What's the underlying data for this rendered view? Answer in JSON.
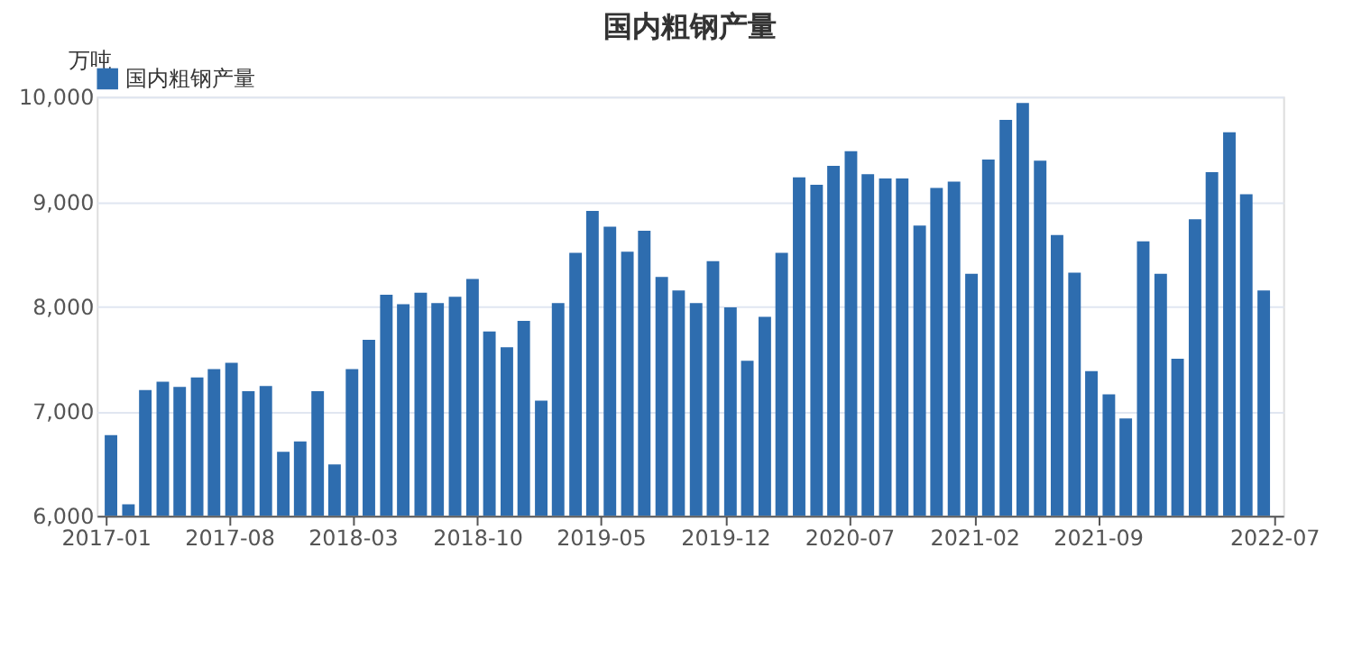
{
  "chart_data": {
    "type": "bar",
    "title": "国内粗钢产量",
    "ylabel": "万吨",
    "x": [
      "2017-01-10",
      "2017-02-09",
      "2017-03-10",
      "2017-04-09",
      "2017-05-08",
      "2017-06-07",
      "2017-07-06",
      "2017-08-05",
      "2017-09-03",
      "2017-10-03",
      "2017-11-02",
      "2017-12-01",
      "2017-12-31",
      "2018-01-29",
      "2018-02-28",
      "2018-03-29",
      "2018-04-28",
      "2018-05-27",
      "2018-06-26",
      "2018-07-25",
      "2018-08-24",
      "2018-09-23",
      "2018-10-22",
      "2018-11-21",
      "2018-12-20",
      "2019-01-19",
      "2019-02-17",
      "2019-03-19",
      "2019-04-17",
      "2019-05-17",
      "2019-06-16",
      "2019-07-15",
      "2019-08-14",
      "2019-09-12",
      "2019-10-12",
      "2019-11-10",
      "2019-12-10",
      "2020-01-08",
      "2020-02-07",
      "2020-03-07",
      "2020-04-06",
      "2020-05-06",
      "2020-06-04",
      "2020-07-04",
      "2020-08-02",
      "2020-09-01",
      "2020-09-30",
      "2020-10-30",
      "2020-11-28",
      "2020-12-28",
      "2021-01-27",
      "2021-02-25",
      "2021-03-27",
      "2021-04-25",
      "2021-05-25",
      "2021-06-23",
      "2021-07-23",
      "2021-08-21",
      "2021-09-20",
      "2021-10-19",
      "2021-11-18",
      "2021-12-18",
      "2022-01-16",
      "2022-02-15",
      "2022-03-16",
      "2022-04-15",
      "2022-05-14",
      "2022-06-13"
    ],
    "series": [
      {
        "name": "国内粗钢产量",
        "color": "#2e6daf",
        "values": [
          6770,
          6110,
          7200,
          7280,
          7230,
          7320,
          7400,
          7460,
          7190,
          7240,
          6610,
          6710,
          7190,
          6490,
          7400,
          7680,
          8110,
          8020,
          8130,
          8030,
          8090,
          8260,
          7760,
          7610,
          7860,
          7100,
          8030,
          8510,
          8910,
          8760,
          8520,
          8720,
          8280,
          8150,
          8030,
          8430,
          7990,
          7480,
          7900,
          8510,
          9230,
          9160,
          9340,
          9480,
          9260,
          9220,
          9220,
          8770,
          9130,
          9190,
          8310,
          9400,
          9780,
          9940,
          9390,
          8680,
          8320,
          7380,
          7160,
          6930,
          8620,
          8310,
          7500,
          8830,
          9280,
          9660,
          9070,
          8150
        ]
      }
    ],
    "xlim": [
      "2017-01",
      "2022-07"
    ],
    "xticks": [
      "2017-01",
      "2017-08",
      "2018-03",
      "2018-10",
      "2019-05",
      "2019-12",
      "2020-07",
      "2021-02",
      "2021-09",
      "2022-07"
    ],
    "ylim": [
      6000,
      10000
    ],
    "yticks": [
      {
        "value": 6000,
        "label": "6,000"
      },
      {
        "value": 7000,
        "label": "7,000"
      },
      {
        "value": 8000,
        "label": "8,000"
      },
      {
        "value": 9000,
        "label": "9,000"
      },
      {
        "value": 10000,
        "label": "10,000"
      }
    ],
    "grid": "y",
    "legend": "top"
  }
}
